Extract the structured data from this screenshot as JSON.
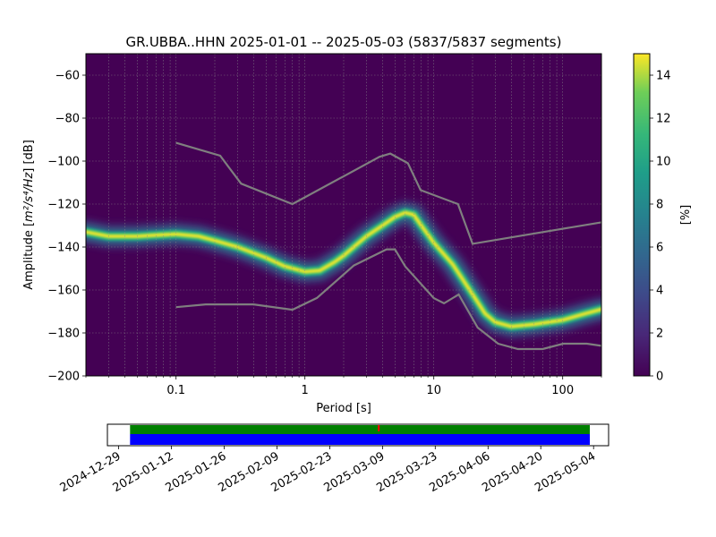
{
  "chart_data": {
    "type": "heatmap",
    "title": "GR.UBBA..HHN   2025-01-01 -- 2025-05-03  (5837/5837 segments)",
    "xlabel": "Period [s]",
    "ylabel_prefix": "Amplitude [",
    "ylabel_unit": "m²/s⁴/Hz",
    "ylabel_suffix": "] [dB]",
    "x_scale": "log",
    "xlim": [
      0.02,
      200
    ],
    "ylim": [
      -200,
      -50
    ],
    "x_ticks": [
      {
        "value": 0.1,
        "label": "0.1"
      },
      {
        "value": 1,
        "label": "1"
      },
      {
        "value": 10,
        "label": "10"
      },
      {
        "value": 100,
        "label": "100"
      }
    ],
    "y_ticks": [
      {
        "value": -60,
        "label": "−60"
      },
      {
        "value": -80,
        "label": "−80"
      },
      {
        "value": -100,
        "label": "−100"
      },
      {
        "value": -120,
        "label": "−120"
      },
      {
        "value": -140,
        "label": "−140"
      },
      {
        "value": -160,
        "label": "−160"
      },
      {
        "value": -180,
        "label": "−180"
      },
      {
        "value": -200,
        "label": "−200"
      }
    ],
    "grid": true,
    "colormap": "viridis",
    "colorbar": {
      "label": "[%]",
      "range": [
        0,
        15
      ],
      "ticks": [
        {
          "value": 0,
          "label": "0"
        },
        {
          "value": 2,
          "label": "2"
        },
        {
          "value": 4,
          "label": "4"
        },
        {
          "value": 6,
          "label": "6"
        },
        {
          "value": 8,
          "label": "8"
        },
        {
          "value": 10,
          "label": "10"
        },
        {
          "value": 12,
          "label": "12"
        },
        {
          "value": 14,
          "label": "14"
        }
      ]
    },
    "mode_curve": [
      {
        "period": 0.02,
        "db": -133
      },
      {
        "period": 0.03,
        "db": -135
      },
      {
        "period": 0.05,
        "db": -135
      },
      {
        "period": 0.07,
        "db": -134.5
      },
      {
        "period": 0.1,
        "db": -134
      },
      {
        "period": 0.15,
        "db": -135
      },
      {
        "period": 0.2,
        "db": -137
      },
      {
        "period": 0.3,
        "db": -140
      },
      {
        "period": 0.5,
        "db": -145
      },
      {
        "period": 0.7,
        "db": -149
      },
      {
        "period": 1.0,
        "db": -151.5
      },
      {
        "period": 1.3,
        "db": -151
      },
      {
        "period": 1.7,
        "db": -147
      },
      {
        "period": 2.0,
        "db": -144
      },
      {
        "period": 2.5,
        "db": -139
      },
      {
        "period": 3.0,
        "db": -135
      },
      {
        "period": 4.0,
        "db": -130
      },
      {
        "period": 5.0,
        "db": -126
      },
      {
        "period": 6.0,
        "db": -124
      },
      {
        "period": 7.0,
        "db": -125
      },
      {
        "period": 8.0,
        "db": -130
      },
      {
        "period": 10,
        "db": -138
      },
      {
        "period": 14,
        "db": -148
      },
      {
        "period": 20,
        "db": -162
      },
      {
        "period": 25,
        "db": -171
      },
      {
        "period": 30,
        "db": -175
      },
      {
        "period": 40,
        "db": -177
      },
      {
        "period": 60,
        "db": -176
      },
      {
        "period": 100,
        "db": -174
      },
      {
        "period": 150,
        "db": -171
      },
      {
        "period": 200,
        "db": -169
      }
    ],
    "nhnm": [
      {
        "period": 0.1,
        "db": -91.5
      },
      {
        "period": 0.22,
        "db": -97.5
      },
      {
        "period": 0.32,
        "db": -110.5
      },
      {
        "period": 0.8,
        "db": -120
      },
      {
        "period": 3.8,
        "db": -98
      },
      {
        "period": 4.6,
        "db": -96.5
      },
      {
        "period": 6.3,
        "db": -101
      },
      {
        "period": 7.9,
        "db": -113.5
      },
      {
        "period": 15.4,
        "db": -120
      },
      {
        "period": 20,
        "db": -138.5
      },
      {
        "period": 200,
        "db": -128.5
      }
    ],
    "nlnm": [
      {
        "period": 0.1,
        "db": -168
      },
      {
        "period": 0.17,
        "db": -166.7
      },
      {
        "period": 0.4,
        "db": -166.7
      },
      {
        "period": 0.8,
        "db": -169.2
      },
      {
        "period": 1.24,
        "db": -163.7
      },
      {
        "period": 2.4,
        "db": -148.6
      },
      {
        "period": 4.3,
        "db": -141.1
      },
      {
        "period": 5.0,
        "db": -141.1
      },
      {
        "period": 6.0,
        "db": -149.0
      },
      {
        "period": 10.0,
        "db": -163.8
      },
      {
        "period": 12.0,
        "db": -166.2
      },
      {
        "period": 15.6,
        "db": -162.1
      },
      {
        "period": 21.9,
        "db": -177.5
      },
      {
        "period": 31.6,
        "db": -185.0
      },
      {
        "period": 45,
        "db": -187.5
      },
      {
        "period": 70,
        "db": -187.5
      },
      {
        "period": 101,
        "db": -185.0
      },
      {
        "period": 154,
        "db": -185.0
      },
      {
        "period": 200,
        "db": -186.0
      }
    ],
    "timeline": {
      "date_ticks": [
        "2024-12-29",
        "2025-01-12",
        "2025-01-26",
        "2025-02-09",
        "2025-02-23",
        "2025-03-09",
        "2025-03-23",
        "2025-04-06",
        "2025-04-20",
        "2025-05-04"
      ],
      "range_start": "2024-12-26",
      "range_end": "2025-05-08",
      "data_start": "2025-01-01",
      "data_end": "2025-05-03",
      "gap_marker": "2025-03-08",
      "colors": {
        "coverage": "#008000",
        "data": "#0000ff",
        "gap": "#ff0000"
      }
    }
  }
}
